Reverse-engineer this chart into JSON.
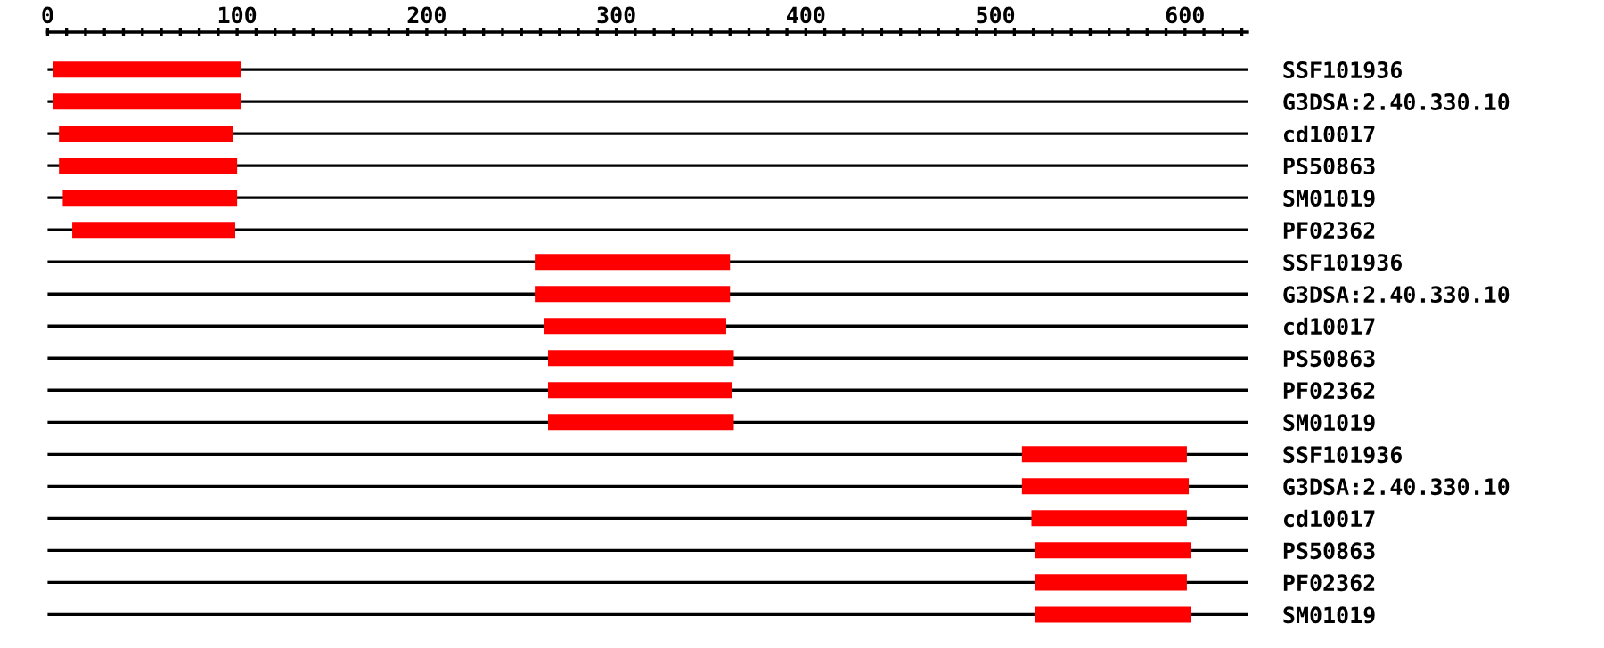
{
  "chart_data": {
    "type": "bar",
    "orientation": "horizontal",
    "categories": [
      "SSF101936",
      "G3DSA:2.40.330.10",
      "cd10017",
      "PS50863",
      "SM01019",
      "PF02362",
      "SSF101936",
      "G3DSA:2.40.330.10",
      "cd10017",
      "PS50863",
      "PF02362",
      "SM01019",
      "SSF101936",
      "G3DSA:2.40.330.10",
      "cd10017",
      "PS50863",
      "PF02362",
      "SM01019"
    ],
    "base": [
      3,
      3,
      6,
      6,
      8,
      13,
      257,
      257,
      262,
      264,
      264,
      264,
      514,
      514,
      519,
      521,
      521,
      521
    ],
    "values": [
      99,
      99,
      92,
      94,
      92,
      86,
      103,
      103,
      96,
      98,
      97,
      98,
      87,
      88,
      82,
      82,
      80,
      82
    ],
    "color": "#ff0000",
    "xlim": [
      0,
      633
    ],
    "xticks": [
      0,
      {
        "value": 10,
        "label": null
      },
      {
        "value": 20,
        "label": null
      },
      {
        "value": 30,
        "label": null
      },
      {
        "value": 40,
        "label": null
      },
      {
        "value": 50,
        "label": null
      },
      {
        "value": 60,
        "label": null
      },
      {
        "value": 70,
        "label": null
      },
      {
        "value": 80,
        "label": null
      },
      {
        "value": 90,
        "label": null
      },
      100,
      {
        "value": 110,
        "label": null
      },
      {
        "value": 120,
        "label": null
      },
      {
        "value": 130,
        "label": null
      },
      {
        "value": 140,
        "label": null
      },
      {
        "value": 150,
        "label": null
      },
      {
        "value": 160,
        "label": null
      },
      {
        "value": 170,
        "label": null
      },
      {
        "value": 180,
        "label": null
      },
      {
        "value": 190,
        "label": null
      },
      200,
      {
        "value": 210,
        "label": null
      },
      {
        "value": 220,
        "label": null
      },
      {
        "value": 230,
        "label": null
      },
      {
        "value": 240,
        "label": null
      },
      {
        "value": 250,
        "label": null
      },
      {
        "value": 260,
        "label": null
      },
      {
        "value": 270,
        "label": null
      },
      {
        "value": 280,
        "label": null
      },
      {
        "value": 290,
        "label": null
      },
      300,
      {
        "value": 310,
        "label": null
      },
      {
        "value": 320,
        "label": null
      },
      {
        "value": 330,
        "label": null
      },
      {
        "value": 340,
        "label": null
      },
      {
        "value": 350,
        "label": null
      },
      {
        "value": 360,
        "label": null
      },
      {
        "value": 370,
        "label": null
      },
      {
        "value": 380,
        "label": null
      },
      {
        "value": 390,
        "label": null
      },
      400,
      {
        "value": 410,
        "label": null
      },
      {
        "value": 420,
        "label": null
      },
      {
        "value": 430,
        "label": null
      },
      {
        "value": 440,
        "label": null
      },
      {
        "value": 450,
        "label": null
      },
      {
        "value": 460,
        "label": null
      },
      {
        "value": 470,
        "label": null
      },
      {
        "value": 480,
        "label": null
      },
      {
        "value": 490,
        "label": null
      },
      500,
      {
        "value": 510,
        "label": null
      },
      {
        "value": 520,
        "label": null
      },
      {
        "value": 530,
        "label": null
      },
      {
        "value": 540,
        "label": null
      },
      {
        "value": 550,
        "label": null
      },
      {
        "value": 560,
        "label": null
      },
      {
        "value": 570,
        "label": null
      },
      {
        "value": 580,
        "label": null
      },
      {
        "value": 590,
        "label": null
      },
      600,
      {
        "value": 610,
        "label": null
      },
      {
        "value": 620,
        "label": null
      },
      {
        "value": 630,
        "label": null
      }
    ],
    "grid": "y"
  }
}
